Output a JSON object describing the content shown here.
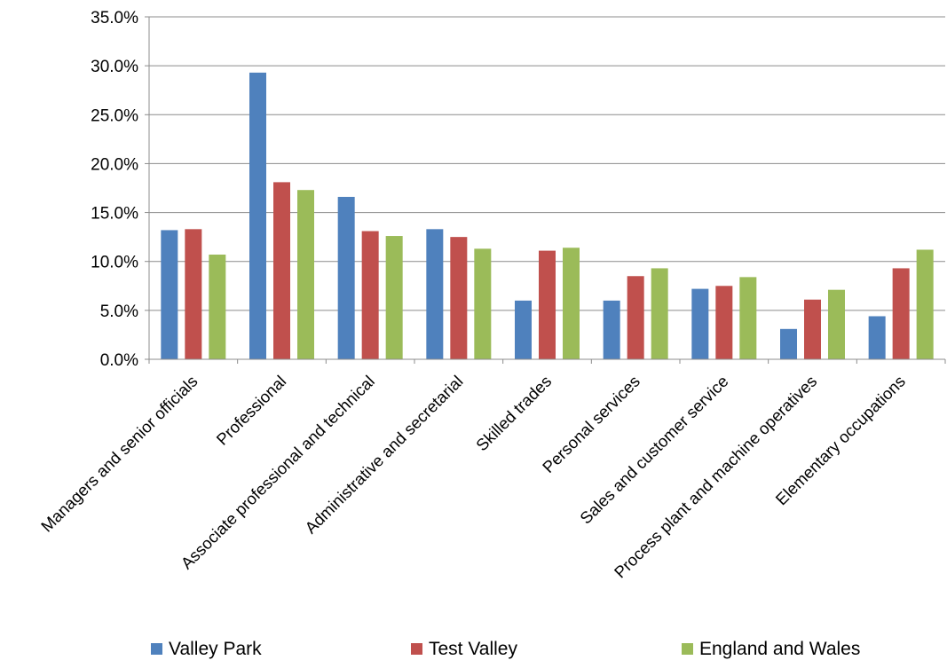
{
  "chart_data": {
    "type": "bar",
    "title": "",
    "xlabel": "",
    "ylabel": "",
    "ylim": [
      0,
      35
    ],
    "y_ticks": [
      "0.0%",
      "5.0%",
      "10.0%",
      "15.0%",
      "20.0%",
      "25.0%",
      "30.0%",
      "35.0%"
    ],
    "grid": true,
    "legend_position": "bottom",
    "categories": [
      "Managers and senior officials",
      "Professional",
      "Associate professional and technical",
      "Administrative and secretarial",
      "Skilled trades",
      "Personal services",
      "Sales and customer service",
      "Process plant and machine operatives",
      "Elementary occupations"
    ],
    "series": [
      {
        "name": "Valley Park",
        "color": "#4f81bd",
        "values": [
          13.2,
          29.3,
          16.6,
          13.3,
          6.0,
          6.0,
          7.2,
          3.1,
          4.4
        ]
      },
      {
        "name": "Test Valley",
        "color": "#c0504d",
        "values": [
          13.3,
          18.1,
          13.1,
          12.5,
          11.1,
          8.5,
          7.5,
          6.1,
          9.3
        ]
      },
      {
        "name": "England and Wales",
        "color": "#9bbb59",
        "values": [
          10.7,
          17.3,
          12.6,
          11.3,
          11.4,
          9.3,
          8.4,
          7.1,
          11.2
        ]
      }
    ]
  }
}
